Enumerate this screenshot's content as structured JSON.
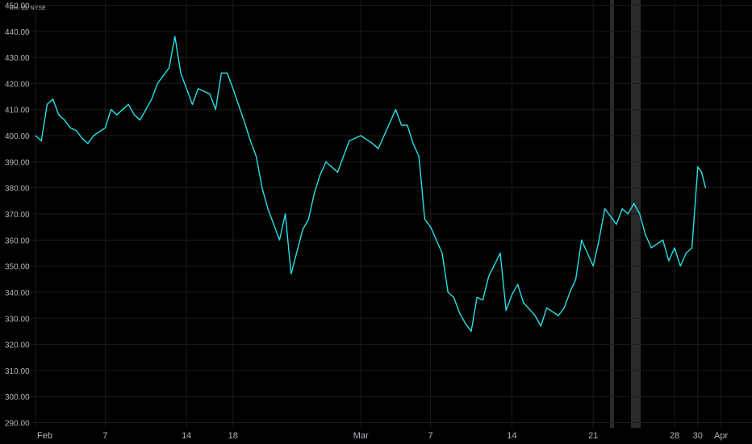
{
  "symbol_label": "RH, 15, NYSE",
  "colors": {
    "background": "#000000",
    "line": "#26e0e8",
    "grid": "#1c1c1c",
    "session_shade": "#2a2a2a",
    "text": "#b2b5be"
  },
  "chart_data": {
    "type": "line",
    "title": "",
    "xlabel": "",
    "ylabel": "",
    "ylim": [
      288,
      452
    ],
    "yticks": [
      290,
      300,
      310,
      320,
      330,
      340,
      350,
      360,
      370,
      380,
      390,
      400,
      410,
      420,
      430,
      440,
      450
    ],
    "ytick_labels": [
      "290.00",
      "300.00",
      "310.00",
      "320.00",
      "330.00",
      "340.00",
      "350.00",
      "360.00",
      "370.00",
      "380.00",
      "390.00",
      "400.00",
      "410.00",
      "420.00",
      "430.00",
      "440.00",
      "450.00"
    ],
    "xlim": [
      "2021-02-01",
      "2021-04-02"
    ],
    "xticks": [
      {
        "date": "2021-02-01",
        "label": "Feb"
      },
      {
        "date": "2021-02-07",
        "label": "7"
      },
      {
        "date": "2021-02-14",
        "label": "14"
      },
      {
        "date": "2021-02-18",
        "label": "18"
      },
      {
        "date": "2021-03-01",
        "label": "Mar"
      },
      {
        "date": "2021-03-07",
        "label": "7"
      },
      {
        "date": "2021-03-14",
        "label": "14"
      },
      {
        "date": "2021-03-21",
        "label": "21"
      },
      {
        "date": "2021-03-28",
        "label": "28"
      },
      {
        "date": "2021-03-30",
        "label": "30"
      },
      {
        "date": "2021-04-01",
        "label": "Apr"
      }
    ],
    "grid": true,
    "series": [
      {
        "x": [
          "2021-02-01",
          "2021-02-01",
          "2021-02-02",
          "2021-02-02",
          "2021-02-03",
          "2021-02-03",
          "2021-02-04",
          "2021-02-04",
          "2021-02-05",
          "2021-02-05",
          "2021-02-06",
          "2021-02-07",
          "2021-02-07",
          "2021-02-08",
          "2021-02-09",
          "2021-02-09",
          "2021-02-10",
          "2021-02-11",
          "2021-02-11",
          "2021-02-12",
          "2021-02-12",
          "2021-02-13",
          "2021-02-13",
          "2021-02-14",
          "2021-02-14",
          "2021-02-15",
          "2021-02-16",
          "2021-02-16",
          "2021-02-17",
          "2021-02-17",
          "2021-02-18",
          "2021-02-19",
          "2021-02-19",
          "2021-02-20",
          "2021-02-20",
          "2021-02-21",
          "2021-02-21",
          "2021-02-22",
          "2021-02-22",
          "2021-02-23",
          "2021-02-24",
          "2021-02-24",
          "2021-02-25",
          "2021-02-25",
          "2021-02-26",
          "2021-02-27",
          "2021-02-28",
          "2021-03-01",
          "2021-03-02",
          "2021-03-02",
          "2021-03-03",
          "2021-03-04",
          "2021-03-04",
          "2021-03-05",
          "2021-03-05",
          "2021-03-06",
          "2021-03-06",
          "2021-03-07",
          "2021-03-08",
          "2021-03-08",
          "2021-03-09",
          "2021-03-09",
          "2021-03-10",
          "2021-03-10",
          "2021-03-11",
          "2021-03-11",
          "2021-03-12",
          "2021-03-13",
          "2021-03-13",
          "2021-03-14",
          "2021-03-14",
          "2021-03-15",
          "2021-03-16",
          "2021-03-16",
          "2021-03-17",
          "2021-03-18",
          "2021-03-18",
          "2021-03-19",
          "2021-03-19",
          "2021-03-20",
          "2021-03-21",
          "2021-03-21",
          "2021-03-22",
          "2021-03-23",
          "2021-03-23",
          "2021-03-24",
          "2021-03-24",
          "2021-03-25",
          "2021-03-25",
          "2021-03-26",
          "2021-03-27",
          "2021-03-27",
          "2021-03-28",
          "2021-03-28",
          "2021-03-29",
          "2021-03-29",
          "2021-03-30",
          "2021-03-30",
          "2021-03-30"
        ],
        "y": [
          400,
          398,
          412,
          414,
          408,
          406,
          403,
          402,
          399,
          397,
          400,
          403,
          410,
          408,
          412,
          408,
          406,
          414,
          420,
          423,
          426,
          438,
          424,
          418,
          412,
          418,
          416,
          410,
          424,
          424,
          418,
          405,
          398,
          392,
          380,
          372,
          366,
          360,
          370,
          347,
          364,
          368,
          378,
          385,
          390,
          386,
          398,
          400,
          397,
          395,
          400,
          410,
          404,
          404,
          397,
          392,
          368,
          365,
          355,
          340,
          338,
          332,
          328,
          325,
          338,
          337,
          346,
          355,
          333,
          339,
          343,
          336,
          331,
          327,
          334,
          331,
          334,
          340,
          345,
          360,
          350,
          360,
          372,
          366,
          372,
          370,
          374,
          370,
          362,
          357,
          360,
          352,
          357,
          350,
          355,
          357,
          388,
          386,
          380
        ]
      }
    ]
  }
}
